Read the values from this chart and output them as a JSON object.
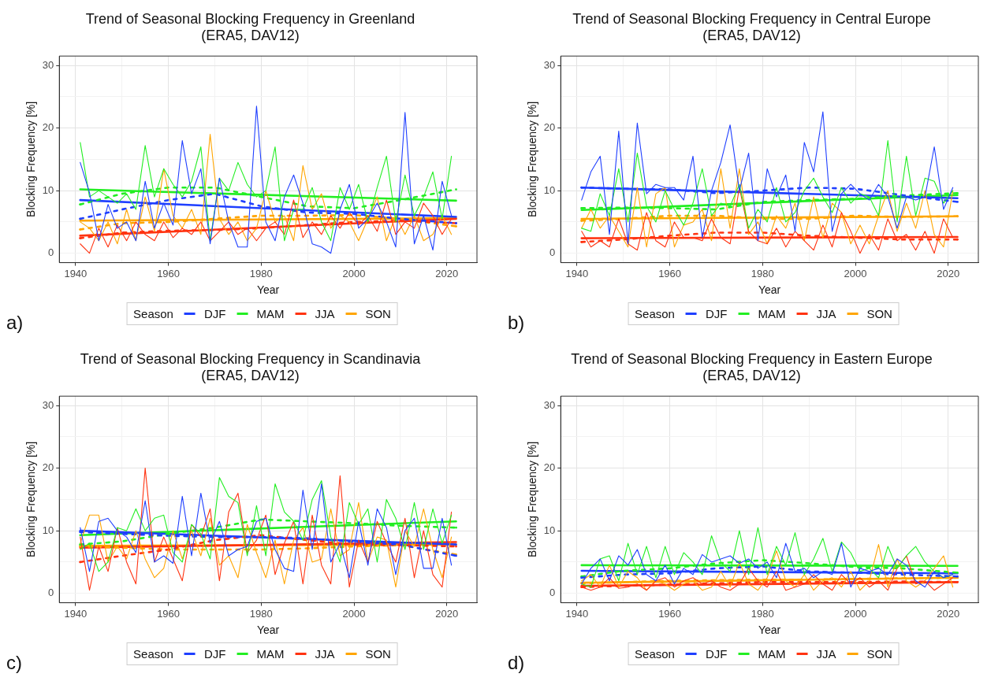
{
  "chart_data": [
    {
      "type": "line",
      "title": "Trend of Seasonal Blocking Frequency in Greenland",
      "subtitle": "(ERA5, DAV12)",
      "xlabel": "Year",
      "ylabel": "Blocking Frequency [%]",
      "legend_title": "Season",
      "legend": "bottom",
      "grid": true,
      "marker": "none",
      "annotations": [
        "a)"
      ],
      "xlim": [
        1936.5,
        2026.5
      ],
      "ylim": [
        -1.5,
        31.5
      ],
      "xticks": [
        1940,
        {
          "value": 1950,
          "label": null
        },
        1960,
        {
          "value": 1970,
          "label": null
        },
        1980,
        {
          "value": 1990,
          "label": null
        },
        2000,
        {
          "value": 2010,
          "label": null
        },
        2020
      ],
      "yticks": [
        0,
        {
          "value": 5,
          "label": null
        },
        10,
        {
          "value": 15,
          "label": null
        },
        20,
        {
          "value": 25,
          "label": null
        },
        30
      ],
      "x": [
        1941,
        1943,
        1945,
        1947,
        1949,
        1951,
        1953,
        1955,
        1957,
        1959,
        1961,
        1963,
        1965,
        1967,
        1969,
        1971,
        1973,
        1975,
        1977,
        1979,
        1981,
        1983,
        1985,
        1987,
        1989,
        1991,
        1993,
        1995,
        1997,
        1999,
        2001,
        2003,
        2005,
        2007,
        2009,
        2011,
        2013,
        2015,
        2017,
        2019,
        2021
      ],
      "series": [
        {
          "name": "DJF",
          "color": "#1f3fff",
          "values": [
            14.5,
            9.7,
            2,
            7.8,
            4,
            5,
            2,
            11.5,
            4,
            8,
            4.5,
            18,
            9.5,
            13.5,
            1.5,
            12,
            5,
            1,
            1,
            23.5,
            5,
            2,
            9,
            12.5,
            8,
            1.5,
            1,
            0,
            7,
            11,
            4,
            5.5,
            8,
            5,
            1,
            22.5,
            1.5,
            6,
            0.5,
            11.5,
            6
          ]
        },
        {
          "name": "MAM",
          "color": "#22ee22",
          "values": [
            17.7,
            9,
            10,
            9,
            8,
            9.5,
            7,
            17.2,
            9,
            13.5,
            11,
            9,
            11.5,
            17,
            2,
            12,
            10,
            14.5,
            11,
            9,
            10,
            17,
            2,
            7,
            7,
            10.5,
            5,
            2,
            10.5,
            7,
            11,
            5,
            10.5,
            15.5,
            5,
            12.5,
            6,
            9,
            13,
            5.5,
            15.5
          ]
        },
        {
          "name": "JJA",
          "color": "#ff3311",
          "values": [
            1.5,
            0,
            4,
            1,
            4.5,
            2,
            5,
            3,
            2,
            5,
            2.5,
            4,
            3,
            5,
            2,
            3.5,
            5,
            3,
            4,
            2,
            4,
            5,
            3,
            8.5,
            2.5,
            5,
            3,
            6,
            4,
            6.5,
            4.5,
            6,
            3.5,
            8.5,
            3,
            5,
            4,
            8,
            6,
            3,
            5.5
          ]
        },
        {
          "name": "SON",
          "color": "#ffa500",
          "values": [
            5,
            4,
            2,
            5,
            1.5,
            7,
            2,
            9,
            3.5,
            13.5,
            6,
            4,
            7,
            3,
            19,
            5.5,
            3,
            5,
            2,
            4,
            10,
            5,
            6,
            2,
            14,
            7,
            9.5,
            4,
            6,
            5,
            2,
            5.5,
            9,
            2,
            6,
            3,
            6,
            2,
            3,
            6,
            3
          ]
        },
        {
          "color": "#1f3fff",
          "line_style": "dashed",
          "x": [
            1941,
            1950,
            1960,
            1970,
            1980,
            1990,
            2000,
            2010,
            2022
          ],
          "values": [
            5.5,
            7,
            8.5,
            9.5,
            7.5,
            6.5,
            6.3,
            5.5,
            4.8
          ]
        },
        {
          "color": "#22ee22",
          "line_style": "dashed",
          "x": [
            1941,
            1950,
            1960,
            1970,
            1980,
            1990,
            2000,
            2010,
            2022
          ],
          "values": [
            7.8,
            9.5,
            10.5,
            10.5,
            9,
            7.5,
            7.2,
            8.5,
            10.2
          ]
        },
        {
          "color": "#ff3311",
          "line_style": "dashed",
          "x": [
            1941,
            1950,
            1960,
            1970,
            1980,
            1990,
            2000,
            2010,
            2022
          ],
          "values": [
            2.4,
            3.3,
            3.6,
            3.7,
            4,
            4.5,
            5,
            5.2,
            4.8
          ]
        },
        {
          "color": "#ffa500",
          "line_style": "dashed",
          "x": [
            1941,
            1950,
            1960,
            1970,
            1980,
            1990,
            2000,
            2010,
            2022
          ],
          "values": [
            3.8,
            4.8,
            5,
            5.5,
            6,
            6,
            6.1,
            5.5,
            4.3
          ]
        },
        {
          "color": "#1f3fff",
          "x": [
            1941,
            2022
          ],
          "values": [
            8.5,
            5.8
          ]
        },
        {
          "color": "#22ee22",
          "x": [
            1941,
            2022
          ],
          "values": [
            10.2,
            8.4
          ]
        },
        {
          "color": "#ff3311",
          "x": [
            1941,
            2022
          ],
          "values": [
            2.8,
            5.5
          ]
        },
        {
          "color": "#ffa500",
          "x": [
            1941,
            2022
          ],
          "values": [
            5.2,
            5.6
          ]
        }
      ]
    },
    {
      "type": "line",
      "title": "Trend of Seasonal Blocking Frequency in Central Europe",
      "subtitle": "(ERA5, DAV12)",
      "xlabel": "Year",
      "ylabel": "Blocking Frequency [%]",
      "legend_title": "Season",
      "legend": "bottom",
      "grid": true,
      "marker": "none",
      "annotations": [
        "b)"
      ],
      "xlim": [
        1936.5,
        2026.5
      ],
      "ylim": [
        -1.5,
        31.5
      ],
      "xticks": [
        1940,
        {
          "value": 1950,
          "label": null
        },
        1960,
        {
          "value": 1970,
          "label": null
        },
        1980,
        {
          "value": 1990,
          "label": null
        },
        2000,
        {
          "value": 2010,
          "label": null
        },
        2020
      ],
      "yticks": [
        0,
        {
          "value": 5,
          "label": null
        },
        10,
        {
          "value": 15,
          "label": null
        },
        20,
        {
          "value": 25,
          "label": null
        },
        30
      ],
      "x": [
        1941,
        1943,
        1945,
        1947,
        1949,
        1951,
        1953,
        1955,
        1957,
        1959,
        1961,
        1963,
        1965,
        1967,
        1969,
        1971,
        1973,
        1975,
        1977,
        1979,
        1981,
        1983,
        1985,
        1987,
        1989,
        1991,
        1993,
        1995,
        1997,
        1999,
        2001,
        2003,
        2005,
        2007,
        2009,
        2011,
        2013,
        2015,
        2017,
        2019,
        2021
      ],
      "series": [
        {
          "name": "DJF",
          "color": "#1f3fff",
          "values": [
            8.5,
            13,
            15.5,
            3,
            19.5,
            1.5,
            20.8,
            9.5,
            11,
            10.5,
            10.5,
            8.5,
            15.5,
            2.5,
            10,
            14.5,
            20.5,
            10,
            16,
            2,
            13.5,
            9,
            12.5,
            3.5,
            17.7,
            13,
            22.6,
            3.5,
            9.5,
            11,
            9.5,
            8.5,
            11,
            9,
            4,
            9,
            8.5,
            9,
            17,
            7,
            10.5
          ]
        },
        {
          "name": "MAM",
          "color": "#22ee22",
          "values": [
            4,
            3.5,
            9.5,
            6,
            13.5,
            5,
            16,
            7.5,
            5,
            10,
            7,
            4.5,
            8,
            13.5,
            6,
            8,
            7.5,
            11,
            4,
            7,
            5,
            10.5,
            5,
            6.5,
            10,
            12,
            9,
            6.5,
            10.5,
            8,
            9.5,
            9,
            6,
            18,
            5,
            15.5,
            6,
            12,
            11.5,
            8,
            10
          ]
        },
        {
          "name": "JJA",
          "color": "#ff3311",
          "values": [
            3.5,
            1,
            2,
            1,
            5.5,
            1.5,
            0.5,
            6.5,
            2,
            1,
            5,
            2.5,
            2.5,
            2,
            5.5,
            2.5,
            1.5,
            10.5,
            3.5,
            2,
            1.5,
            4,
            1,
            3.5,
            2,
            0.5,
            4.5,
            1,
            6.5,
            3.5,
            0,
            3,
            0.5,
            5.5,
            2,
            3,
            0.5,
            3.5,
            0,
            5.5,
            2.5
          ]
        },
        {
          "name": "SON",
          "color": "#ffa500",
          "values": [
            4,
            7,
            4,
            6,
            3.5,
            1,
            10.5,
            1,
            9.5,
            10.5,
            1,
            4.5,
            5,
            7,
            2,
            13.5,
            4,
            13.5,
            3,
            5,
            1.5,
            6,
            4,
            8,
            2,
            9,
            2.5,
            8,
            6.5,
            1.5,
            4.5,
            1.5,
            6,
            10,
            3.5,
            8,
            4,
            10,
            3,
            1,
            10
          ]
        },
        {
          "color": "#1f3fff",
          "line_style": "dashed",
          "x": [
            1941,
            1950,
            1960,
            1970,
            1980,
            1990,
            2000,
            2010,
            2022
          ],
          "values": [
            10.5,
            10.3,
            10.2,
            9.6,
            10,
            10.5,
            10.3,
            9.3,
            8.2
          ]
        },
        {
          "color": "#22ee22",
          "line_style": "dashed",
          "x": [
            1941,
            1950,
            1960,
            1970,
            1980,
            1990,
            2000,
            2010,
            2022
          ],
          "values": [
            7.2,
            7.3,
            7.2,
            7,
            8.2,
            8.5,
            8.7,
            9.2,
            9.6
          ]
        },
        {
          "color": "#ff3311",
          "line_style": "dashed",
          "x": [
            1941,
            1950,
            1960,
            1970,
            1980,
            1990,
            2000,
            2010,
            2022
          ],
          "values": [
            1.8,
            2.2,
            2.8,
            3.3,
            3.3,
            2.8,
            2.5,
            2.2,
            2.2
          ]
        },
        {
          "color": "#ffa500",
          "line_style": "dashed",
          "x": [
            1941,
            1950,
            1960,
            1970,
            1980,
            1990,
            2000,
            2010,
            2022
          ],
          "values": [
            5.2,
            5.5,
            6,
            6,
            5.5,
            5.5,
            6,
            5.8,
            5.9
          ]
        },
        {
          "color": "#1f3fff",
          "x": [
            1941,
            2022
          ],
          "values": [
            10.5,
            8.8
          ]
        },
        {
          "color": "#22ee22",
          "x": [
            1941,
            2022
          ],
          "values": [
            6.9,
            9.3
          ]
        },
        {
          "color": "#ff3311",
          "x": [
            1941,
            2022
          ],
          "values": [
            2.4,
            2.6
          ]
        },
        {
          "color": "#ffa500",
          "x": [
            1941,
            2022
          ],
          "values": [
            5.5,
            5.9
          ]
        }
      ]
    },
    {
      "type": "line",
      "title": "Trend of Seasonal Blocking Frequency in Scandinavia",
      "subtitle": "(ERA5, DAV12)",
      "xlabel": "Year",
      "ylabel": "Blocking Frequency [%]",
      "legend_title": "Season",
      "legend": "bottom",
      "grid": true,
      "marker": "none",
      "annotations": [
        "c)"
      ],
      "xlim": [
        1936.5,
        2026.5
      ],
      "ylim": [
        -1.5,
        31.5
      ],
      "xticks": [
        1940,
        {
          "value": 1950,
          "label": null
        },
        1960,
        {
          "value": 1970,
          "label": null
        },
        1980,
        {
          "value": 1990,
          "label": null
        },
        2000,
        {
          "value": 2010,
          "label": null
        },
        2020
      ],
      "yticks": [
        0,
        {
          "value": 5,
          "label": null
        },
        10,
        {
          "value": 15,
          "label": null
        },
        20,
        {
          "value": 25,
          "label": null
        },
        30
      ],
      "x": [
        1941,
        1943,
        1945,
        1947,
        1949,
        1951,
        1953,
        1955,
        1957,
        1959,
        1961,
        1963,
        1965,
        1967,
        1969,
        1971,
        1973,
        1975,
        1977,
        1979,
        1981,
        1983,
        1985,
        1987,
        1989,
        1991,
        1993,
        1995,
        1997,
        1999,
        2001,
        2003,
        2005,
        2007,
        2009,
        2011,
        2013,
        2015,
        2017,
        2019,
        2021
      ],
      "series": [
        {
          "name": "DJF",
          "color": "#1f3fff",
          "values": [
            10.5,
            3.5,
            11.5,
            12,
            10,
            9,
            6.5,
            14.8,
            5,
            6,
            4.8,
            15.5,
            6,
            16,
            8,
            11.5,
            6,
            7,
            7.5,
            11.5,
            12,
            7,
            4,
            3.5,
            16.5,
            7,
            17.5,
            5,
            8,
            2.5,
            11.5,
            4.5,
            13.5,
            10.5,
            3,
            10,
            12,
            4,
            4,
            12,
            4.5
          ]
        },
        {
          "name": "MAM",
          "color": "#22ee22",
          "values": [
            7,
            8,
            3.5,
            5,
            10.5,
            10,
            13.5,
            10,
            12,
            12.5,
            6.5,
            5,
            11,
            9.5,
            5.5,
            18.5,
            15.5,
            14.5,
            6,
            14,
            6,
            17.5,
            13,
            11.5,
            8.5,
            15,
            18,
            9,
            5,
            14.5,
            11,
            13.5,
            5,
            15,
            12,
            7,
            14.5,
            7,
            13.5,
            8,
            12.5
          ]
        },
        {
          "name": "JJA",
          "color": "#ff3311",
          "values": [
            9,
            0.5,
            7.5,
            3.5,
            10.5,
            5,
            1.5,
            20,
            5,
            9,
            5.5,
            2,
            11,
            9,
            13.5,
            2,
            13,
            16,
            6.5,
            8.5,
            12.5,
            3,
            8,
            11.5,
            1.5,
            12.5,
            4.5,
            1.5,
            18.8,
            1,
            8.5,
            5,
            11.5,
            8,
            5,
            12,
            2.5,
            10,
            3,
            1,
            13
          ]
        },
        {
          "name": "SON",
          "color": "#ffa500",
          "values": [
            8,
            12.5,
            12.5,
            5,
            7.5,
            5.5,
            10,
            5.5,
            2.5,
            4,
            10,
            5.5,
            10,
            6,
            12,
            4.5,
            6,
            2.5,
            11,
            6.5,
            2.5,
            8.5,
            1.5,
            8.5,
            10.5,
            5,
            5.5,
            13.5,
            6,
            7,
            14.5,
            5,
            9,
            8.5,
            1,
            10,
            7.5,
            13.5,
            7,
            2.5,
            9
          ]
        },
        {
          "color": "#1f3fff",
          "line_style": "dashed",
          "x": [
            1941,
            1950,
            1960,
            1970,
            1980,
            1990,
            2000,
            2010,
            2022
          ],
          "values": [
            9.8,
            9.5,
            9.2,
            9,
            9,
            8.8,
            8.2,
            7.8,
            6
          ]
        },
        {
          "color": "#22ee22",
          "line_style": "dashed",
          "x": [
            1941,
            1950,
            1960,
            1970,
            1980,
            1990,
            2000,
            2010,
            2022
          ],
          "values": [
            7.8,
            8.3,
            9.5,
            10.5,
            11.8,
            11.5,
            11.2,
            10.8,
            10.5
          ]
        },
        {
          "color": "#ff3311",
          "line_style": "dashed",
          "x": [
            1941,
            1950,
            1960,
            1970,
            1980,
            1990,
            2000,
            2010,
            2022
          ],
          "values": [
            5,
            6,
            7,
            8.5,
            9.3,
            8.5,
            7.8,
            7.7,
            7.5
          ]
        },
        {
          "color": "#ffa500",
          "line_style": "dashed",
          "x": [
            1941,
            1950,
            1960,
            1970,
            1980,
            1990,
            2000,
            2010,
            2022
          ],
          "values": [
            7.5,
            7.3,
            7,
            7,
            7,
            7.2,
            7.5,
            7.7,
            6.2
          ]
        },
        {
          "color": "#1f3fff",
          "x": [
            1941,
            2022
          ],
          "values": [
            10,
            7.8
          ]
        },
        {
          "color": "#22ee22",
          "x": [
            1941,
            2022
          ],
          "values": [
            9.3,
            11.5
          ]
        },
        {
          "color": "#ff3311",
          "x": [
            1941,
            2022
          ],
          "values": [
            7.3,
            8.2
          ]
        },
        {
          "color": "#ffa500",
          "x": [
            1941,
            2022
          ],
          "values": [
            7.6,
            7.8
          ]
        }
      ]
    },
    {
      "type": "line",
      "title": "Trend of Seasonal Blocking Frequency in Eastern Europe",
      "subtitle": "(ERA5, DAV12)",
      "xlabel": "Year",
      "ylabel": "Blocking Frequency [%]",
      "legend_title": "Season",
      "legend": "bottom",
      "grid": true,
      "marker": "none",
      "annotations": [
        "d)"
      ],
      "xlim": [
        1936.5,
        2026.5
      ],
      "ylim": [
        -1.5,
        31.5
      ],
      "xticks": [
        1940,
        {
          "value": 1950,
          "label": null
        },
        1960,
        {
          "value": 1970,
          "label": null
        },
        1980,
        {
          "value": 1990,
          "label": null
        },
        2000,
        {
          "value": 2010,
          "label": null
        },
        2020
      ],
      "yticks": [
        0,
        {
          "value": 5,
          "label": null
        },
        10,
        {
          "value": 15,
          "label": null
        },
        20,
        {
          "value": 25,
          "label": null
        },
        30
      ],
      "x": [
        1941,
        1943,
        1945,
        1947,
        1949,
        1951,
        1953,
        1955,
        1957,
        1959,
        1961,
        1963,
        1965,
        1967,
        1969,
        1971,
        1973,
        1975,
        1977,
        1979,
        1981,
        1983,
        1985,
        1987,
        1989,
        1991,
        1993,
        1995,
        1997,
        1999,
        2001,
        2003,
        2005,
        2007,
        2009,
        2011,
        2013,
        2015,
        2017,
        2019,
        2021
      ],
      "series": [
        {
          "name": "DJF",
          "color": "#1f3fff",
          "values": [
            1.5,
            4,
            5.5,
            2,
            6,
            4.5,
            7,
            3,
            2,
            4.5,
            1.5,
            4,
            3,
            6.2,
            5,
            5.5,
            6,
            4.8,
            5.5,
            4,
            5,
            2.5,
            8,
            3.5,
            4,
            2.5,
            3.5,
            3,
            8,
            1,
            4,
            3.5,
            4,
            3,
            5.5,
            4.5,
            2,
            1,
            3.5,
            2.5,
            3
          ]
        },
        {
          "name": "MAM",
          "color": "#22ee22",
          "values": [
            1.5,
            1,
            5.5,
            6,
            2,
            8,
            3,
            7.5,
            2.5,
            7.5,
            3,
            6.5,
            5,
            3,
            9.2,
            5,
            3.5,
            10,
            3,
            10.5,
            3,
            7.5,
            4.5,
            9.7,
            3,
            5.5,
            8.8,
            3.5,
            8.2,
            6.5,
            3.5,
            4,
            2.5,
            7.5,
            4,
            6,
            7.5,
            5,
            3.5,
            2.5,
            3
          ]
        },
        {
          "name": "JJA",
          "color": "#ff3311",
          "values": [
            1,
            0.5,
            1,
            2.5,
            0.8,
            1,
            1.5,
            0.5,
            2,
            2.5,
            1,
            2,
            2.5,
            1.5,
            2,
            1,
            0.5,
            1.5,
            4,
            2,
            1,
            3.5,
            0.5,
            1,
            1.5,
            3,
            1.5,
            0.5,
            3,
            1.5,
            2.5,
            1,
            2,
            0.5,
            4,
            6,
            1.5,
            2,
            0.5,
            1.5,
            2.5
          ]
        },
        {
          "name": "SON",
          "color": "#ffa500",
          "values": [
            2,
            3,
            1,
            4.5,
            1,
            3.5,
            2.5,
            0.5,
            2,
            1.5,
            0.5,
            1.5,
            2,
            0.5,
            1,
            3.5,
            1,
            5,
            1.5,
            0.5,
            2.5,
            6.8,
            2,
            1,
            3,
            0.5,
            2,
            2.5,
            1,
            3.5,
            0.5,
            2,
            7.8,
            1,
            5.5,
            2,
            1,
            2,
            4,
            6,
            1
          ]
        },
        {
          "color": "#1f3fff",
          "line_style": "dashed",
          "x": [
            1941,
            1950,
            1960,
            1970,
            1980,
            1990,
            2000,
            2010,
            2022
          ],
          "values": [
            2.5,
            3,
            3.2,
            4,
            4.3,
            3.5,
            3.3,
            3,
            2.7
          ]
        },
        {
          "color": "#22ee22",
          "line_style": "dashed",
          "x": [
            1941,
            1950,
            1960,
            1970,
            1980,
            1990,
            2000,
            2010,
            2022
          ],
          "values": [
            2.7,
            3.6,
            4,
            4.8,
            5.3,
            4.8,
            4.2,
            4,
            3.3
          ]
        },
        {
          "color": "#ff3311",
          "line_style": "dashed",
          "x": [
            1941,
            1950,
            1960,
            1970,
            1980,
            1990,
            2000,
            2010,
            2022
          ],
          "values": [
            1,
            1.2,
            1.4,
            1.6,
            1.8,
            1.8,
            1.8,
            1.9,
            1.8
          ]
        },
        {
          "color": "#ffa500",
          "line_style": "dashed",
          "x": [
            1941,
            1950,
            1960,
            1970,
            1980,
            1990,
            2000,
            2010,
            2022
          ],
          "values": [
            1.6,
            1.8,
            2,
            2.1,
            2.2,
            2.2,
            2.3,
            2.4,
            2.5
          ]
        },
        {
          "color": "#1f3fff",
          "x": [
            1941,
            2022
          ],
          "values": [
            3.6,
            3.2
          ]
        },
        {
          "color": "#22ee22",
          "x": [
            1941,
            2022
          ],
          "values": [
            4.5,
            4.4
          ]
        },
        {
          "color": "#ff3311",
          "x": [
            1941,
            2022
          ],
          "values": [
            1.2,
            1.8
          ]
        },
        {
          "color": "#ffa500",
          "x": [
            1941,
            2022
          ],
          "values": [
            1.7,
            2.5
          ]
        }
      ]
    }
  ]
}
